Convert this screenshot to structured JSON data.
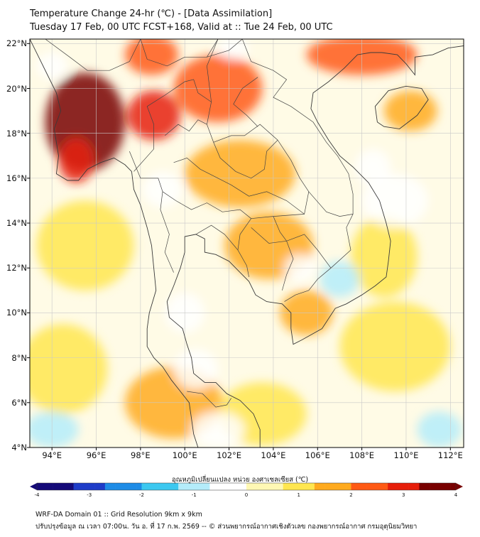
{
  "title": {
    "line1": "Temperature Change 24-hr (℃) - [Data Assimilation]",
    "line2": "Tuesday 17 Feb, 00 UTC FCST+168, Valid at :: Tue 24 Feb, 00 UTC"
  },
  "axes": {
    "lat_labels": [
      "22°N",
      "20°N",
      "18°N",
      "16°N",
      "14°N",
      "12°N",
      "10°N",
      "8°N",
      "6°N",
      "4°N"
    ],
    "lon_labels": [
      "94°E",
      "96°E",
      "98°E",
      "100°E",
      "102°E",
      "104°E",
      "106°E",
      "108°E",
      "110°E",
      "112°E"
    ],
    "lat_range": [
      4,
      22.2
    ],
    "lon_range": [
      93,
      112.6
    ]
  },
  "colorbar": {
    "label": "อุณหภูมิเปลี่ยนแปลง หน่วย องศาเซลเซียส (℃)",
    "ticks": [
      "-4",
      "-3",
      "-2",
      "-1",
      "0",
      "1",
      "2",
      "3",
      "4"
    ],
    "range": [
      -4,
      4
    ],
    "colors": [
      "#140a78",
      "#1e3cc8",
      "#1e8ce6",
      "#3cc8f0",
      "#b4ecfa",
      "#ffffff",
      "#fff8b4",
      "#ffe650",
      "#ffaa1e",
      "#ff5a14",
      "#e61e0a",
      "#780000"
    ]
  },
  "footer": {
    "line1": "WRF-DA Domain 01 :: Grid Resolution 9km x 9km",
    "line2": "ปรับปรุงข้อมูล ณ เวลา 07:00น. วัน อ. ที่ 17 ก.พ. 2569 -- © ส่วนพยากรณ์อากาศเชิงตัวเลข กองพยากรณ์อากาศ กรมอุตุนิยมวิทยา"
  },
  "map": {
    "background": "#fffbe6",
    "anomalies": [
      {
        "lon": 95.5,
        "lat": 18.5,
        "value": 3.4,
        "rx": 1.8,
        "ry": 2.2
      },
      {
        "lon": 95.1,
        "lat": 16.8,
        "value": 3.2,
        "rx": 0.8,
        "ry": 1.0
      },
      {
        "lon": 98.6,
        "lat": 18.8,
        "value": 3.0,
        "rx": 1.2,
        "ry": 1.1
      },
      {
        "lon": 98.5,
        "lat": 21.5,
        "value": 2.6,
        "rx": 1.2,
        "ry": 0.9
      },
      {
        "lon": 101.5,
        "lat": 20.0,
        "value": 2.0,
        "rx": 2.0,
        "ry": 1.5
      },
      {
        "lon": 102.5,
        "lat": 16.2,
        "value": 1.8,
        "rx": 2.5,
        "ry": 1.5
      },
      {
        "lon": 103.8,
        "lat": 13.0,
        "value": 1.5,
        "rx": 2.0,
        "ry": 1.5
      },
      {
        "lon": 105.5,
        "lat": 10.0,
        "value": 1.6,
        "rx": 1.2,
        "ry": 1.0
      },
      {
        "lon": 108.0,
        "lat": 21.5,
        "value": 2.2,
        "rx": 2.5,
        "ry": 0.9
      },
      {
        "lon": 110.2,
        "lat": 19.0,
        "value": 1.8,
        "rx": 1.2,
        "ry": 0.9
      },
      {
        "lon": 99.5,
        "lat": 6.0,
        "value": 1.6,
        "rx": 2.2,
        "ry": 1.6
      },
      {
        "lon": 95.5,
        "lat": 13.0,
        "value": 1.0,
        "rx": 2.2,
        "ry": 2.0
      },
      {
        "lon": 94.5,
        "lat": 7.5,
        "value": 1.0,
        "rx": 2.0,
        "ry": 2.0
      },
      {
        "lon": 109.5,
        "lat": 8.5,
        "value": 1.2,
        "rx": 2.5,
        "ry": 2.0
      },
      {
        "lon": 103.5,
        "lat": 5.5,
        "value": 1.3,
        "rx": 2.0,
        "ry": 1.4
      },
      {
        "lon": 109.0,
        "lat": 12.5,
        "value": 1.0,
        "rx": 1.5,
        "ry": 1.8
      },
      {
        "lon": 94.0,
        "lat": 21.0,
        "value": -0.6,
        "rx": 0.7,
        "ry": 0.6
      },
      {
        "lon": 99.0,
        "lat": 15.5,
        "value": -0.6,
        "rx": 0.9,
        "ry": 0.8
      },
      {
        "lon": 105.2,
        "lat": 12.0,
        "value": -0.6,
        "rx": 0.7,
        "ry": 0.6
      },
      {
        "lon": 107.0,
        "lat": 11.5,
        "value": -0.7,
        "rx": 0.9,
        "ry": 0.8
      },
      {
        "lon": 109.5,
        "lat": 15.0,
        "value": -0.4,
        "rx": 1.5,
        "ry": 1.2
      },
      {
        "lon": 100.0,
        "lat": 10.0,
        "value": -0.6,
        "rx": 0.9,
        "ry": 0.9
      },
      {
        "lon": 100.5,
        "lat": 7.5,
        "value": -0.5,
        "rx": 1.0,
        "ry": 0.9
      },
      {
        "lon": 94.0,
        "lat": 4.8,
        "value": -1.0,
        "rx": 1.2,
        "ry": 0.8
      },
      {
        "lon": 101.5,
        "lat": 4.8,
        "value": -0.6,
        "rx": 1.2,
        "ry": 0.8
      },
      {
        "lon": 111.5,
        "lat": 4.8,
        "value": -1.0,
        "rx": 1.0,
        "ry": 0.8
      },
      {
        "lon": 102.2,
        "lat": 21.8,
        "value": -0.5,
        "rx": 0.7,
        "ry": 0.5
      },
      {
        "lon": 108.5,
        "lat": 16.5,
        "value": -0.3,
        "rx": 0.8,
        "ry": 0.8
      }
    ],
    "coastlines": [
      [
        [
          93.0,
          22.2
        ],
        [
          93.4,
          21.4
        ],
        [
          93.8,
          20.6
        ],
        [
          94.2,
          19.8
        ],
        [
          94.4,
          19.0
        ],
        [
          94.1,
          18.2
        ],
        [
          94.3,
          17.0
        ],
        [
          94.2,
          16.2
        ],
        [
          94.7,
          15.9
        ],
        [
          95.2,
          15.9
        ],
        [
          95.6,
          16.4
        ],
        [
          96.2,
          16.7
        ],
        [
          96.8,
          16.9
        ],
        [
          97.3,
          16.6
        ],
        [
          97.6,
          16.3
        ],
        [
          97.7,
          15.5
        ],
        [
          98.0,
          14.8
        ],
        [
          98.3,
          13.8
        ],
        [
          98.5,
          13.0
        ],
        [
          98.6,
          12.0
        ],
        [
          98.7,
          11.0
        ],
        [
          98.4,
          10.0
        ],
        [
          98.3,
          9.3
        ],
        [
          98.3,
          8.5
        ],
        [
          98.6,
          8.0
        ],
        [
          99.0,
          7.6
        ],
        [
          99.4,
          7.0
        ],
        [
          99.8,
          6.5
        ],
        [
          100.2,
          6.0
        ],
        [
          100.3,
          5.3
        ],
        [
          100.4,
          4.6
        ],
        [
          100.6,
          4.0
        ]
      ],
      [
        [
          103.4,
          4.0
        ],
        [
          103.4,
          4.8
        ],
        [
          103.1,
          5.5
        ],
        [
          102.5,
          6.1
        ],
        [
          101.9,
          6.4
        ],
        [
          101.4,
          6.9
        ],
        [
          100.9,
          6.9
        ],
        [
          100.4,
          7.3
        ],
        [
          100.3,
          8.0
        ],
        [
          100.1,
          8.6
        ],
        [
          99.9,
          9.3
        ],
        [
          99.3,
          9.8
        ],
        [
          99.2,
          10.5
        ],
        [
          99.5,
          11.2
        ],
        [
          99.8,
          12.0
        ],
        [
          100.0,
          12.7
        ],
        [
          100.0,
          13.4
        ],
        [
          100.5,
          13.5
        ],
        [
          100.9,
          13.3
        ],
        [
          100.9,
          12.7
        ],
        [
          101.4,
          12.6
        ],
        [
          102.0,
          12.3
        ],
        [
          102.5,
          11.8
        ],
        [
          102.9,
          11.4
        ],
        [
          103.2,
          10.8
        ],
        [
          103.7,
          10.5
        ],
        [
          104.4,
          10.4
        ],
        [
          104.8,
          10.0
        ],
        [
          104.8,
          9.3
        ],
        [
          104.9,
          8.6
        ],
        [
          105.3,
          8.8
        ],
        [
          106.2,
          9.3
        ],
        [
          106.8,
          10.2
        ],
        [
          107.3,
          10.4
        ],
        [
          108.0,
          10.8
        ],
        [
          108.6,
          11.2
        ],
        [
          109.1,
          11.6
        ],
        [
          109.2,
          12.3
        ],
        [
          109.3,
          13.2
        ],
        [
          109.1,
          14.0
        ],
        [
          108.8,
          15.0
        ],
        [
          108.3,
          15.8
        ],
        [
          107.6,
          16.5
        ],
        [
          107.0,
          17.0
        ],
        [
          106.5,
          17.7
        ],
        [
          106.0,
          18.5
        ],
        [
          105.7,
          19.1
        ],
        [
          105.8,
          19.8
        ],
        [
          106.5,
          20.3
        ],
        [
          107.2,
          20.9
        ],
        [
          107.8,
          21.5
        ],
        [
          108.4,
          21.6
        ],
        [
          108.9,
          21.6
        ],
        [
          109.6,
          21.5
        ],
        [
          110.0,
          21.1
        ],
        [
          110.4,
          20.6
        ],
        [
          110.4,
          21.4
        ],
        [
          111.2,
          21.5
        ],
        [
          111.9,
          21.8
        ],
        [
          112.6,
          21.9
        ]
      ],
      [
        [
          108.7,
          18.5
        ],
        [
          108.6,
          19.2
        ],
        [
          109.2,
          19.9
        ],
        [
          110.0,
          20.1
        ],
        [
          110.7,
          20.0
        ],
        [
          111.0,
          19.5
        ],
        [
          110.5,
          18.8
        ],
        [
          109.7,
          18.2
        ],
        [
          109.0,
          18.3
        ],
        [
          108.7,
          18.5
        ]
      ]
    ],
    "borders": [
      [
        [
          93.7,
          22.2
        ],
        [
          94.8,
          21.4
        ],
        [
          95.6,
          20.8
        ],
        [
          96.6,
          20.8
        ],
        [
          97.5,
          21.2
        ],
        [
          98.0,
          22.2
        ]
      ],
      [
        [
          98.0,
          22.2
        ],
        [
          98.3,
          21.3
        ],
        [
          99.2,
          21.0
        ],
        [
          100.0,
          21.4
        ],
        [
          101.0,
          21.4
        ],
        [
          101.5,
          22.2
        ]
      ],
      [
        [
          97.5,
          17.2
        ],
        [
          98.0,
          16.0
        ],
        [
          98.8,
          16.0
        ],
        [
          99.0,
          15.4
        ],
        [
          98.9,
          14.6
        ],
        [
          99.3,
          13.5
        ],
        [
          99.1,
          12.7
        ],
        [
          99.5,
          11.8
        ]
      ],
      [
        [
          97.7,
          16.3
        ],
        [
          98.6,
          17.3
        ],
        [
          98.6,
          18.4
        ],
        [
          98.3,
          19.2
        ],
        [
          99.1,
          19.7
        ],
        [
          100.0,
          20.3
        ],
        [
          100.4,
          20.4
        ],
        [
          100.6,
          19.8
        ],
        [
          101.2,
          19.4
        ],
        [
          101.0,
          18.4
        ],
        [
          101.3,
          17.6
        ],
        [
          102.1,
          17.9
        ],
        [
          102.7,
          17.9
        ],
        [
          103.4,
          18.4
        ],
        [
          104.2,
          17.7
        ],
        [
          104.8,
          16.8
        ],
        [
          105.2,
          16.0
        ],
        [
          105.6,
          15.4
        ],
        [
          105.4,
          14.4
        ],
        [
          104.0,
          14.3
        ],
        [
          103.0,
          14.2
        ],
        [
          102.5,
          13.5
        ],
        [
          102.4,
          12.8
        ],
        [
          102.8,
          12.1
        ],
        [
          102.9,
          11.6
        ]
      ],
      [
        [
          101.2,
          19.4
        ],
        [
          101.0,
          21.0
        ],
        [
          101.5,
          22.2
        ]
      ],
      [
        [
          101.0,
          21.4
        ],
        [
          102.0,
          21.7
        ],
        [
          102.6,
          22.2
        ]
      ],
      [
        [
          102.6,
          22.2
        ],
        [
          103.0,
          21.2
        ],
        [
          104.0,
          20.8
        ],
        [
          104.6,
          20.4
        ],
        [
          104.0,
          19.6
        ],
        [
          104.8,
          19.2
        ],
        [
          105.8,
          18.5
        ],
        [
          106.4,
          17.6
        ],
        [
          106.9,
          17.0
        ],
        [
          107.4,
          16.2
        ],
        [
          107.6,
          15.3
        ],
        [
          107.6,
          14.4
        ],
        [
          107.3,
          13.8
        ],
        [
          107.5,
          12.8
        ],
        [
          106.6,
          12.0
        ],
        [
          106.0,
          11.5
        ],
        [
          105.6,
          11.0
        ],
        [
          105.0,
          10.8
        ],
        [
          104.5,
          10.5
        ]
      ],
      [
        [
          105.6,
          15.4
        ],
        [
          106.4,
          14.5
        ],
        [
          107.0,
          14.3
        ],
        [
          107.6,
          14.4
        ]
      ],
      [
        [
          100.1,
          6.5
        ],
        [
          100.8,
          6.4
        ],
        [
          101.4,
          5.8
        ],
        [
          101.9,
          5.9
        ],
        [
          102.1,
          6.2
        ]
      ],
      [
        [
          103.3,
          20.5
        ],
        [
          102.6,
          20.0
        ],
        [
          102.2,
          19.3
        ],
        [
          102.8,
          18.8
        ],
        [
          103.3,
          18.3
        ]
      ],
      [
        [
          104.2,
          17.7
        ],
        [
          103.7,
          17.2
        ],
        [
          103.6,
          16.4
        ],
        [
          103.0,
          16.0
        ],
        [
          102.3,
          16.3
        ],
        [
          101.6,
          16.9
        ],
        [
          101.3,
          17.6
        ]
      ],
      [
        [
          99.1,
          17.9
        ],
        [
          99.7,
          18.4
        ],
        [
          100.2,
          18.1
        ],
        [
          100.6,
          18.6
        ],
        [
          101.0,
          18.4
        ]
      ],
      [
        [
          99.5,
          16.7
        ],
        [
          100.1,
          16.9
        ],
        [
          100.7,
          16.4
        ],
        [
          101.3,
          16.1
        ],
        [
          102.1,
          15.7
        ],
        [
          102.9,
          15.2
        ],
        [
          103.7,
          15.4
        ],
        [
          104.6,
          15.0
        ],
        [
          105.4,
          14.4
        ]
      ],
      [
        [
          99.0,
          15.4
        ],
        [
          99.6,
          15.0
        ],
        [
          100.3,
          14.6
        ],
        [
          101.0,
          14.9
        ],
        [
          101.7,
          14.5
        ],
        [
          102.5,
          14.6
        ],
        [
          103.0,
          14.2
        ]
      ],
      [
        [
          100.5,
          13.5
        ],
        [
          101.2,
          13.9
        ],
        [
          101.8,
          13.5
        ],
        [
          102.4,
          12.8
        ]
      ],
      [
        [
          103.0,
          13.8
        ],
        [
          103.8,
          13.1
        ],
        [
          104.6,
          13.2
        ],
        [
          105.4,
          13.5
        ],
        [
          106.0,
          12.8
        ],
        [
          106.6,
          12.0
        ]
      ],
      [
        [
          104.0,
          14.3
        ],
        [
          104.3,
          13.6
        ],
        [
          104.6,
          13.2
        ],
        [
          104.9,
          12.4
        ],
        [
          104.6,
          11.7
        ],
        [
          104.4,
          11.0
        ]
      ]
    ]
  }
}
